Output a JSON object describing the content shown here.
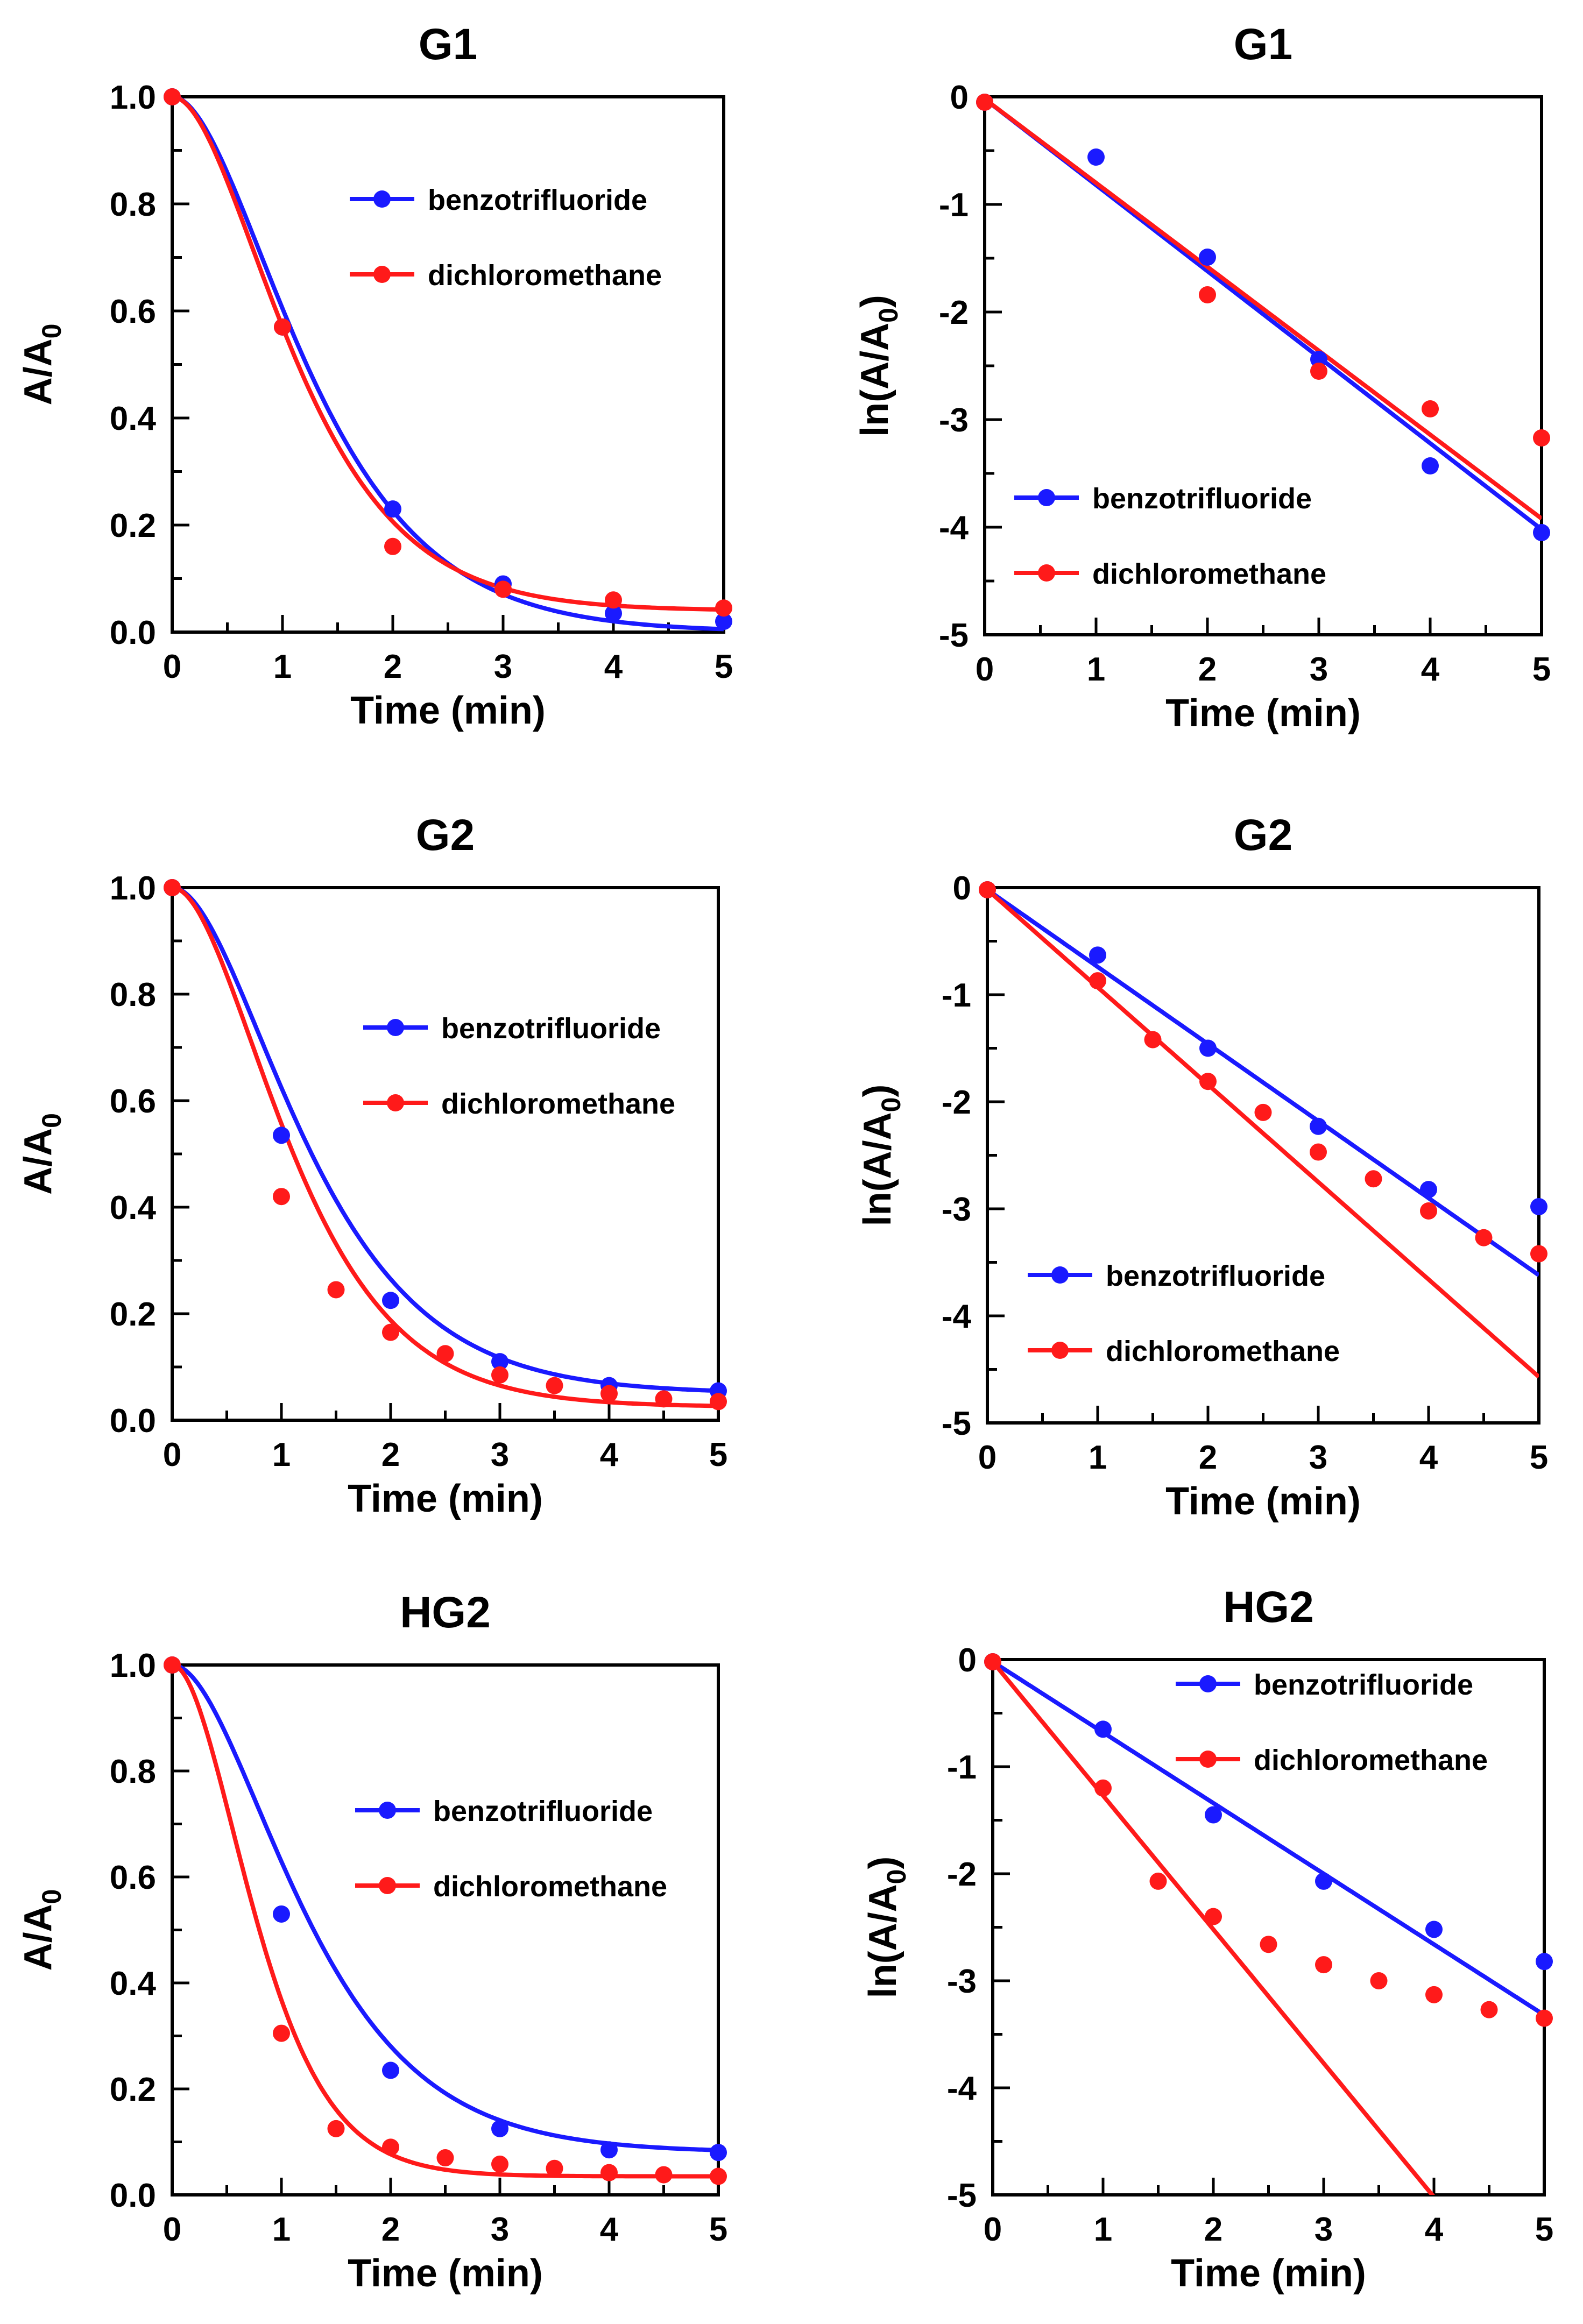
{
  "chart_data": [
    {
      "type": "scatter",
      "title": "G1",
      "xlabel": "Time (min)",
      "ylabel": {
        "main": "A/A",
        "sub": "0"
      },
      "xlim": [
        0,
        5
      ],
      "ylim": [
        0,
        1
      ],
      "xticks": [
        "0",
        "1",
        "2",
        "3",
        "4",
        "5"
      ],
      "yticks": [
        "0.0",
        "0.2",
        "0.4",
        "0.6",
        "0.8",
        "1.0"
      ],
      "legend_position": "upper-right",
      "series": [
        {
          "name": "benzotrifluoride",
          "color": "#1a1aff",
          "fit": "exp",
          "k": 0.78,
          "c": 0.0,
          "points": [
            [
              0,
              1.0
            ],
            [
              1,
              0.57
            ],
            [
              2,
              0.23
            ],
            [
              3,
              0.09
            ],
            [
              4,
              0.035
            ],
            [
              5,
              0.02
            ]
          ]
        },
        {
          "name": "dichloromethane",
          "color": "#ff1a1a",
          "fit": "exp",
          "k": 0.92,
          "c": 0.04,
          "points": [
            [
              0,
              1.0
            ],
            [
              1,
              0.57
            ],
            [
              2,
              0.16
            ],
            [
              3,
              0.08
            ],
            [
              4,
              0.06
            ],
            [
              5,
              0.045
            ]
          ]
        }
      ]
    },
    {
      "type": "scatter",
      "title": "G1",
      "xlabel": "Time (min)",
      "ylabel": {
        "main": "ln(A/A",
        "sub": "0",
        "suffix": ")"
      },
      "xlim": [
        0,
        5
      ],
      "ylim": [
        -5,
        0
      ],
      "xticks": [
        "0",
        "1",
        "2",
        "3",
        "4",
        "5"
      ],
      "yticks": [
        "-5",
        "-4",
        "-3",
        "-2",
        "-1",
        "0"
      ],
      "legend_position": "lower-left",
      "series": [
        {
          "name": "benzotrifluoride",
          "color": "#1a1aff",
          "fit": "line",
          "slope": -0.8,
          "points": [
            [
              0,
              -0.05
            ],
            [
              1,
              -0.56
            ],
            [
              2,
              -1.49
            ],
            [
              3,
              -2.44
            ],
            [
              4,
              -3.43
            ],
            [
              5,
              -4.05
            ]
          ]
        },
        {
          "name": "dichloromethane",
          "color": "#ff1a1a",
          "fit": "line",
          "slope": -0.78,
          "points": [
            [
              0,
              -0.05
            ],
            [
              2,
              -1.84
            ],
            [
              3,
              -2.55
            ],
            [
              4,
              -2.9
            ],
            [
              5,
              -3.17
            ]
          ]
        }
      ]
    },
    {
      "type": "scatter",
      "title": "G2",
      "xlabel": "Time (min)",
      "ylabel": {
        "main": "A/A",
        "sub": "0"
      },
      "xlim": [
        0,
        5
      ],
      "ylim": [
        0,
        1
      ],
      "xticks": [
        "0",
        "1",
        "2",
        "3",
        "4",
        "5"
      ],
      "yticks": [
        "0.0",
        "0.2",
        "0.4",
        "0.6",
        "0.8",
        "1.0"
      ],
      "legend_position": "right",
      "series": [
        {
          "name": "benzotrifluoride",
          "color": "#1a1aff",
          "fit": "exp",
          "k": 0.78,
          "c": 0.05,
          "points": [
            [
              0,
              1.0
            ],
            [
              1,
              0.535
            ],
            [
              2,
              0.225
            ],
            [
              3,
              0.11
            ],
            [
              4,
              0.065
            ],
            [
              5,
              0.055
            ]
          ]
        },
        {
          "name": "dichloromethane",
          "color": "#ff1a1a",
          "fit": "exp",
          "k": 0.94,
          "c": 0.025,
          "points": [
            [
              0,
              1.0
            ],
            [
              1,
              0.42
            ],
            [
              1.5,
              0.245
            ],
            [
              2,
              0.165
            ],
            [
              2.5,
              0.125
            ],
            [
              3,
              0.085
            ],
            [
              3.5,
              0.065
            ],
            [
              4,
              0.05
            ],
            [
              4.5,
              0.04
            ],
            [
              5,
              0.035
            ]
          ]
        }
      ]
    },
    {
      "type": "scatter",
      "title": "G2",
      "xlabel": "Time (min)",
      "ylabel": {
        "main": "ln(A/A",
        "sub": "0",
        "suffix": ")"
      },
      "xlim": [
        0,
        5
      ],
      "ylim": [
        -5,
        0
      ],
      "xticks": [
        "0",
        "1",
        "2",
        "3",
        "4",
        "5"
      ],
      "yticks": [
        "-5",
        "-4",
        "-3",
        "-2",
        "-1",
        "0"
      ],
      "legend_position": "lower-left",
      "series": [
        {
          "name": "benzotrifluoride",
          "color": "#1a1aff",
          "fit": "line",
          "slope": -0.72,
          "points": [
            [
              0,
              -0.02
            ],
            [
              1,
              -0.63
            ],
            [
              2,
              -1.5
            ],
            [
              3,
              -2.23
            ],
            [
              4,
              -2.82
            ],
            [
              5,
              -2.98
            ]
          ]
        },
        {
          "name": "dichloromethane",
          "color": "#ff1a1a",
          "fit": "line",
          "slope": -0.91,
          "points": [
            [
              0,
              -0.02
            ],
            [
              1,
              -0.87
            ],
            [
              1.5,
              -1.42
            ],
            [
              2,
              -1.81
            ],
            [
              2.5,
              -2.1
            ],
            [
              3,
              -2.47
            ],
            [
              3.5,
              -2.72
            ],
            [
              4,
              -3.02
            ],
            [
              4.5,
              -3.27
            ],
            [
              5,
              -3.42
            ]
          ]
        }
      ]
    },
    {
      "type": "scatter",
      "title": "HG2",
      "xlabel": "Time (min)",
      "ylabel": {
        "main": "A/A",
        "sub": "0"
      },
      "xlim": [
        0,
        5
      ],
      "ylim": [
        0,
        1
      ],
      "xticks": [
        "0",
        "1",
        "2",
        "3",
        "4",
        "5"
      ],
      "yticks": [
        "0.0",
        "0.2",
        "0.4",
        "0.6",
        "0.8",
        "1.0"
      ],
      "legend_position": "right",
      "series": [
        {
          "name": "benzotrifluoride",
          "color": "#1a1aff",
          "fit": "exp",
          "k": 0.8,
          "c": 0.08,
          "points": [
            [
              0,
              1.0
            ],
            [
              1,
              0.53
            ],
            [
              2,
              0.235
            ],
            [
              3,
              0.125
            ],
            [
              4,
              0.085
            ],
            [
              5,
              0.08
            ]
          ]
        },
        {
          "name": "dichloromethane",
          "color": "#ff1a1a",
          "fit": "exp",
          "k": 1.65,
          "c": 0.035,
          "points": [
            [
              0,
              1.0
            ],
            [
              1,
              0.305
            ],
            [
              1.5,
              0.125
            ],
            [
              2,
              0.09
            ],
            [
              2.5,
              0.07
            ],
            [
              3,
              0.058
            ],
            [
              3.5,
              0.05
            ],
            [
              4,
              0.042
            ],
            [
              4.5,
              0.038
            ],
            [
              5,
              0.035
            ]
          ]
        }
      ]
    },
    {
      "type": "scatter",
      "title": "HG2",
      "xlabel": "Time (min)",
      "ylabel": {
        "main": "ln(A/A",
        "sub": "0",
        "suffix": ")"
      },
      "xlim": [
        0,
        5
      ],
      "ylim": [
        -5,
        0
      ],
      "xticks": [
        "0",
        "1",
        "2",
        "3",
        "4",
        "5"
      ],
      "yticks": [
        "-5",
        "-4",
        "-3",
        "-2",
        "-1",
        "0"
      ],
      "legend_position": "upper-right",
      "series": [
        {
          "name": "benzotrifluoride",
          "color": "#1a1aff",
          "fit": "line",
          "slope": -0.66,
          "points": [
            [
              0,
              -0.02
            ],
            [
              1,
              -0.65
            ],
            [
              2,
              -1.45
            ],
            [
              3,
              -2.07
            ],
            [
              4,
              -2.52
            ],
            [
              5,
              -2.82
            ]
          ]
        },
        {
          "name": "dichloromethane",
          "color": "#ff1a1a",
          "fit": "line",
          "slope": -1.25,
          "points": [
            [
              0,
              -0.02
            ],
            [
              1,
              -1.2
            ],
            [
              1.5,
              -2.07
            ],
            [
              2,
              -2.4
            ],
            [
              2.5,
              -2.66
            ],
            [
              3,
              -2.85
            ],
            [
              3.5,
              -3.0
            ],
            [
              4,
              -3.13
            ],
            [
              4.5,
              -3.27
            ],
            [
              5,
              -3.35
            ]
          ]
        }
      ]
    }
  ]
}
